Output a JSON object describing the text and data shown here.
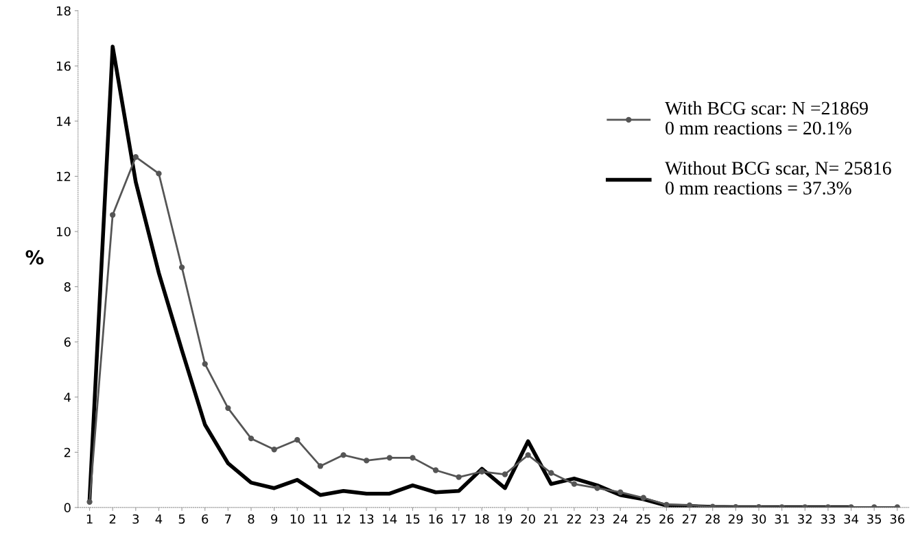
{
  "chart_data": {
    "type": "line",
    "ylabel": "%",
    "categories": [
      "1",
      "2",
      "3",
      "4",
      "5",
      "6",
      "7",
      "8",
      "9",
      "10",
      "11",
      "12",
      "13",
      "14",
      "15",
      "16",
      "17",
      "18",
      "19",
      "20",
      "21",
      "22",
      "23",
      "24",
      "25",
      "26",
      "27",
      "28",
      "29",
      "30",
      "31",
      "32",
      "33",
      "34",
      "35",
      "36"
    ],
    "series": [
      {
        "name": "With BCG scar: N =21869\n0 mm reactions = 20.1%",
        "color": "#555555",
        "marker": "circle",
        "values": [
          0.2,
          10.6,
          12.7,
          12.1,
          8.7,
          5.2,
          3.6,
          2.5,
          2.1,
          2.45,
          1.5,
          1.9,
          1.7,
          1.8,
          1.8,
          1.35,
          1.1,
          1.3,
          1.2,
          1.9,
          1.25,
          0.85,
          0.7,
          0.55,
          0.35,
          0.1,
          0.08,
          0.03,
          0.02,
          0.02,
          0.01,
          0.01,
          0.01,
          0.01,
          0.01,
          0.01
        ]
      },
      {
        "name": "Without BCG scar, N= 25816\n0 mm reactions = 37.3%",
        "color": "#000000",
        "marker": "none",
        "values": [
          0.3,
          16.7,
          11.8,
          8.5,
          5.7,
          3.0,
          1.6,
          0.9,
          0.7,
          1.0,
          0.45,
          0.6,
          0.5,
          0.5,
          0.8,
          0.55,
          0.6,
          1.4,
          0.7,
          2.4,
          0.85,
          1.05,
          0.8,
          0.45,
          0.3,
          0.07,
          0.05,
          0.02,
          0.01,
          0.01,
          0.01,
          0.01,
          0.01,
          0.01,
          null,
          null
        ]
      }
    ],
    "ylim": [
      0,
      18
    ],
    "yticks": [
      0,
      2,
      4,
      6,
      8,
      10,
      12,
      14,
      16,
      18
    ],
    "grid": false,
    "legend": "right",
    "line_style": "solid"
  }
}
